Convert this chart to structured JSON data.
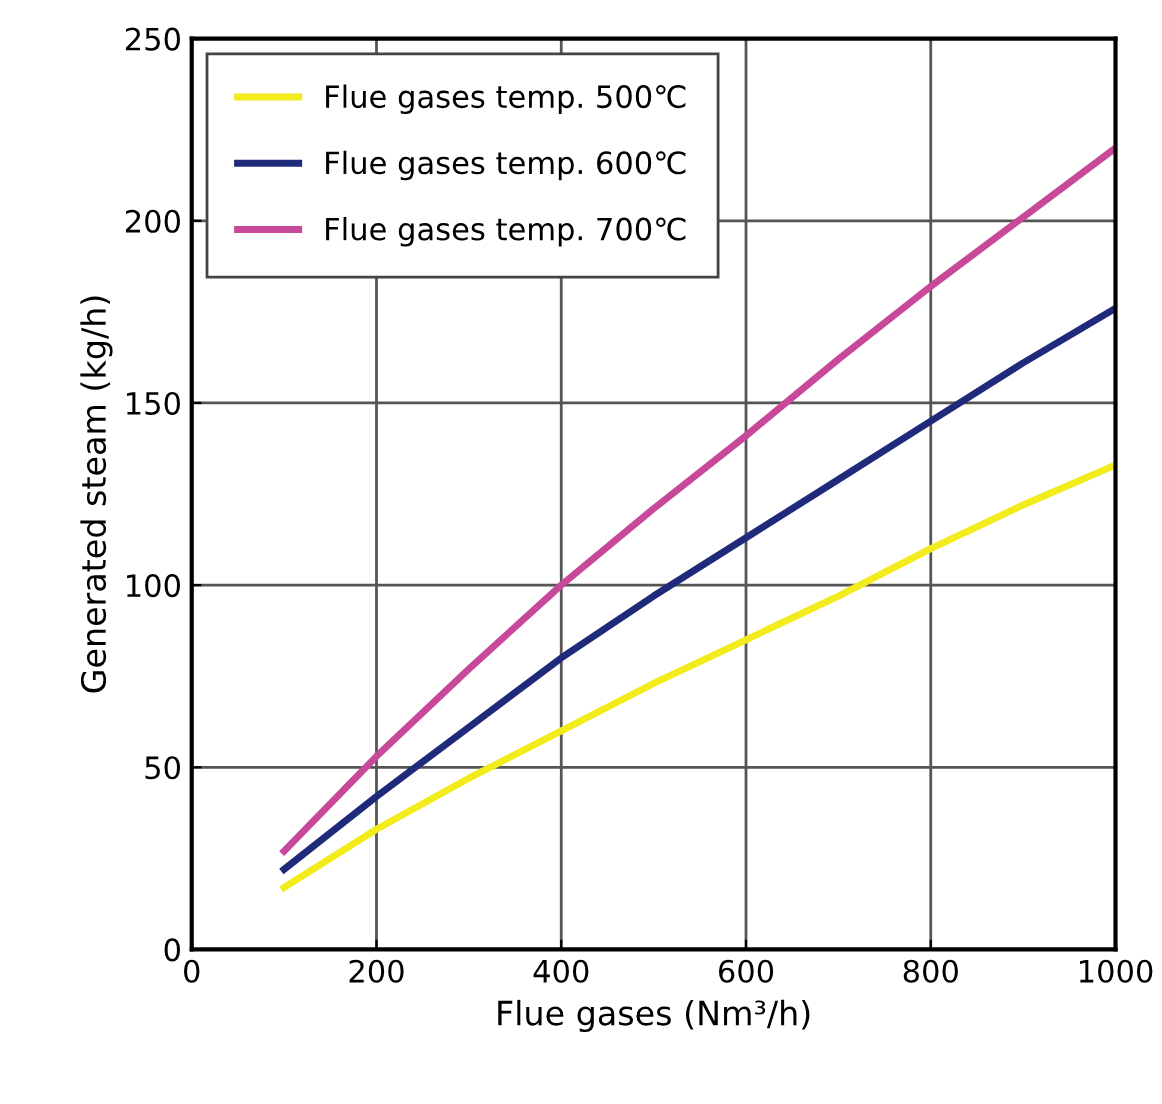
{
  "chart_data": {
    "type": "line",
    "xlabel": "Flue gases (Nm³/h)",
    "ylabel": "Generated steam (kg/h)",
    "x": [
      100,
      200,
      300,
      400,
      500,
      600,
      700,
      800,
      900,
      1000
    ],
    "series": [
      {
        "name": "Flue gases temp. 500℃",
        "color": "#f2ec1c",
        "values": [
          17,
          33,
          47,
          60,
          73,
          85,
          97,
          110,
          122,
          133
        ]
      },
      {
        "name": "Flue gases temp. 600℃",
        "color": "#1f2a7a",
        "values": [
          22,
          42,
          61,
          80,
          97,
          113,
          129,
          145,
          161,
          176
        ]
      },
      {
        "name": "Flue gases temp. 700℃",
        "color": "#c8489a",
        "values": [
          27,
          53,
          77,
          100,
          121,
          141,
          162,
          182,
          201,
          220
        ]
      }
    ],
    "xlim": [
      0,
      1000
    ],
    "ylim": [
      0,
      250
    ],
    "xticks": [
      0,
      200,
      400,
      600,
      800,
      1000
    ],
    "yticks": [
      0,
      50,
      100,
      150,
      200,
      250
    ],
    "grid": true,
    "legend": "top left",
    "marker": "none",
    "line_style": "solid"
  }
}
